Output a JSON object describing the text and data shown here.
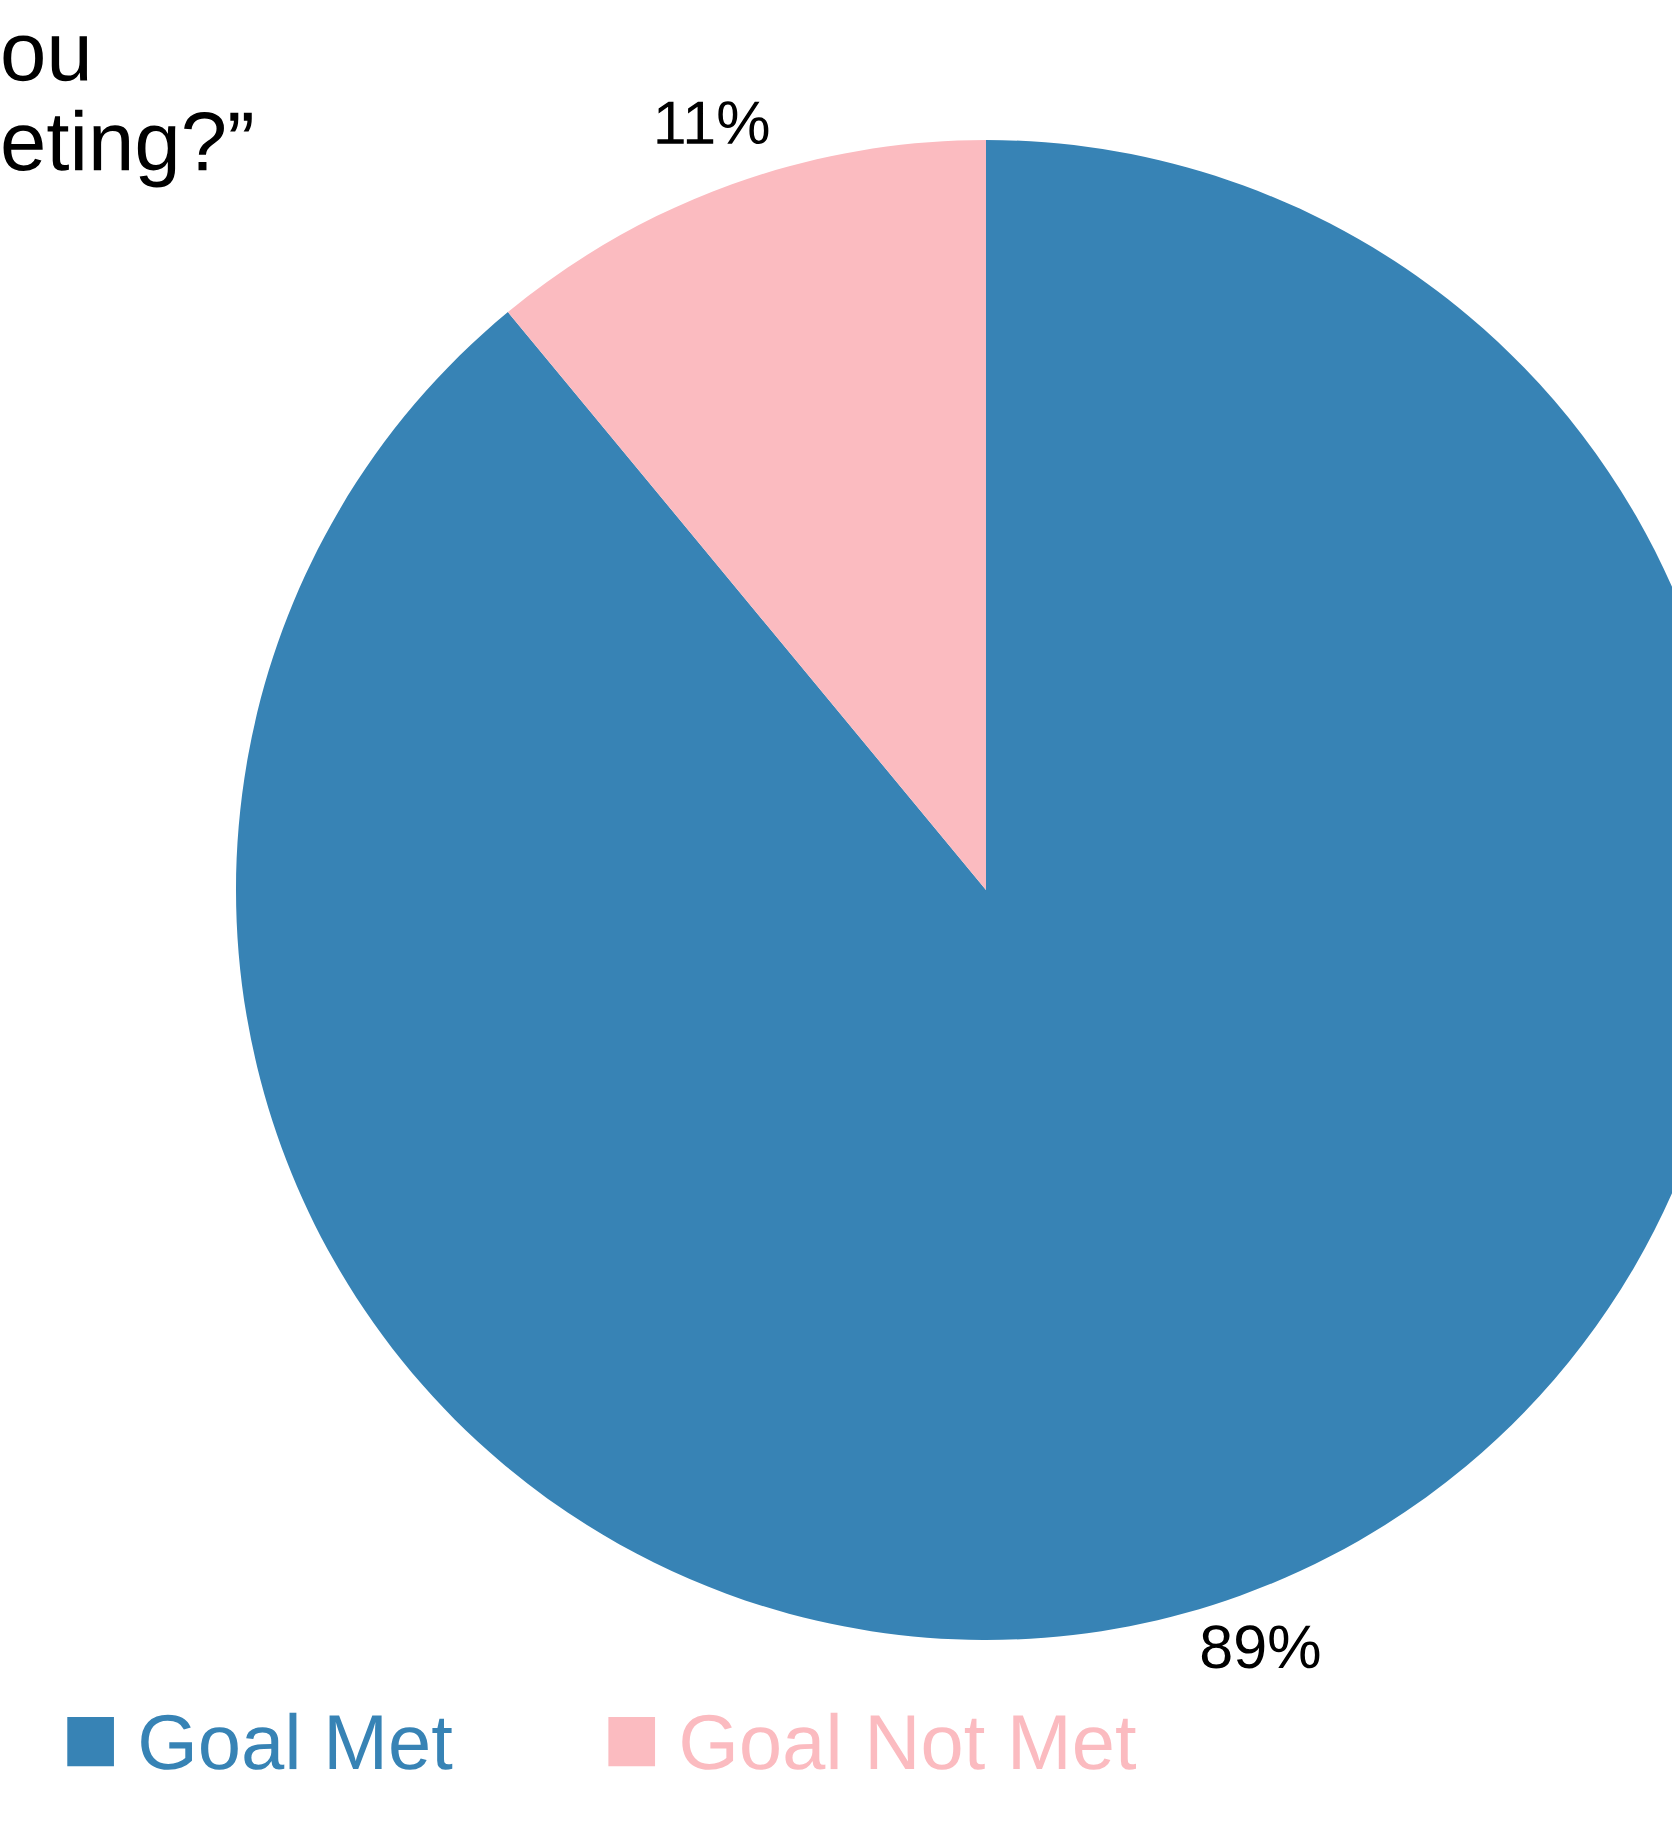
{
  "chart_data": {
    "type": "pie",
    "title": "ou\neting?”",
    "categories": [
      "Goal Met",
      "Goal Not Met"
    ],
    "values": [
      89,
      11
    ],
    "colors": [
      "#3783b5",
      "#fbbbc0"
    ],
    "value_labels": [
      "89%",
      "11%"
    ],
    "legend": "bottom"
  }
}
